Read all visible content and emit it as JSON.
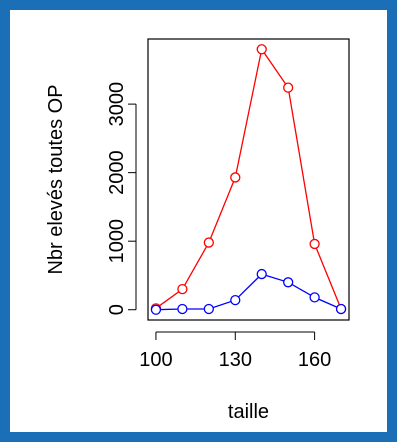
{
  "chart_data": {
    "type": "line",
    "title": "",
    "xlabel": "taille",
    "ylabel": "Nbr elevés toutes OP",
    "xlim": [
      97,
      173
    ],
    "ylim": [
      -150,
      3950
    ],
    "x_ticks": [
      100,
      130,
      160
    ],
    "y_ticks": [
      0,
      1000,
      2000,
      3000
    ],
    "grid": false,
    "x": [
      100,
      110,
      120,
      130,
      140,
      150,
      160,
      170
    ],
    "series": [
      {
        "color": "#ff0000",
        "marker": "circle",
        "values": [
          20,
          300,
          980,
          1930,
          3800,
          3240,
          960,
          10
        ]
      },
      {
        "color": "#0000ff",
        "marker": "circle",
        "values": [
          0,
          10,
          10,
          140,
          520,
          400,
          180,
          10
        ]
      }
    ]
  },
  "colors": {
    "frame": "#1a6fb6",
    "background": "#ffffff"
  }
}
